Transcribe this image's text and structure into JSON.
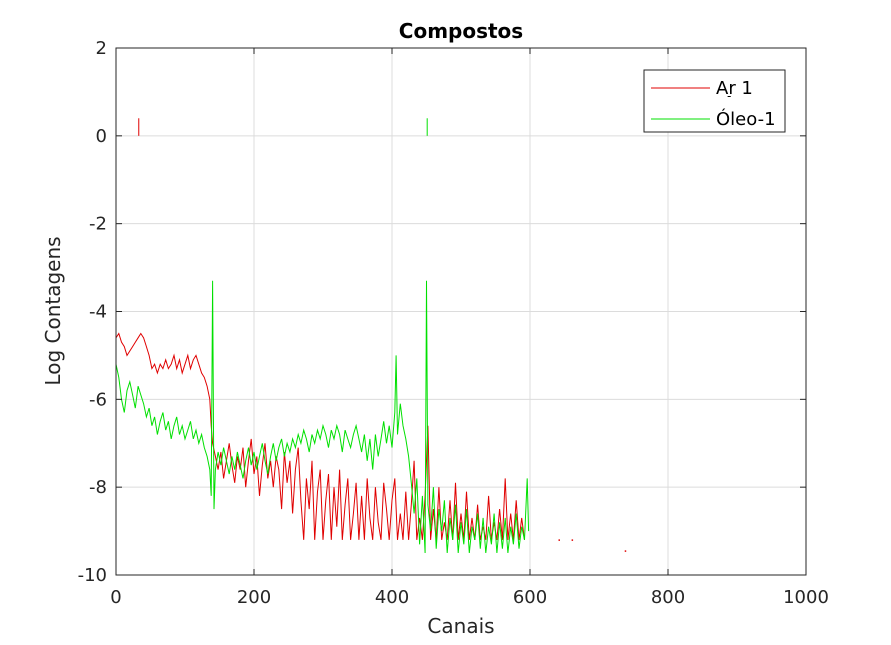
{
  "chart_data": {
    "type": "line",
    "title": "Compostos",
    "xlabel": "Canais",
    "ylabel": "Log Contagens",
    "xlim": [
      0,
      1000
    ],
    "ylim": [
      -10,
      2
    ],
    "xticks": [
      0,
      200,
      400,
      600,
      800,
      1000
    ],
    "xtick_labels": [
      "0",
      "200",
      "400",
      "600",
      "800",
      "1000"
    ],
    "yticks": [
      2,
      0,
      -2,
      -4,
      -6,
      -8,
      -10
    ],
    "ytick_labels": [
      "2",
      "0",
      "-2",
      "-4",
      "-6",
      "-8",
      "-10"
    ],
    "grid": true,
    "legend_position": "top-right",
    "series": [
      {
        "name": "Ar_1",
        "legend_label": "Ar 1",
        "legend_sub": "-",
        "color": "#e00000",
        "points": [
          [
            0,
            -4.6
          ],
          [
            4,
            -4.5
          ],
          [
            8,
            -4.7
          ],
          [
            12,
            -4.8
          ],
          [
            16,
            -5.0
          ],
          [
            20,
            -4.9
          ],
          [
            24,
            -4.8
          ],
          [
            28,
            -4.7
          ],
          [
            32,
            -4.6
          ],
          [
            36,
            -4.5
          ],
          [
            40,
            -4.6
          ],
          [
            44,
            -4.8
          ],
          [
            48,
            -5.0
          ],
          [
            52,
            -5.3
          ],
          [
            56,
            -5.2
          ],
          [
            60,
            -5.4
          ],
          [
            64,
            -5.2
          ],
          [
            68,
            -5.3
          ],
          [
            72,
            -5.1
          ],
          [
            76,
            -5.3
          ],
          [
            80,
            -5.2
          ],
          [
            84,
            -5.0
          ],
          [
            88,
            -5.3
          ],
          [
            92,
            -5.1
          ],
          [
            96,
            -5.4
          ],
          [
            100,
            -5.2
          ],
          [
            104,
            -5.0
          ],
          [
            108,
            -5.3
          ],
          [
            112,
            -5.1
          ],
          [
            116,
            -5.0
          ],
          [
            120,
            -5.2
          ],
          [
            124,
            -5.4
          ],
          [
            128,
            -5.5
          ],
          [
            132,
            -5.7
          ],
          [
            136,
            -6.0
          ],
          [
            138,
            -6.6
          ],
          [
            140,
            -7.0
          ],
          [
            144,
            -7.3
          ],
          [
            148,
            -7.6
          ],
          [
            152,
            -7.2
          ],
          [
            156,
            -7.8
          ],
          [
            160,
            -7.4
          ],
          [
            164,
            -7.0
          ],
          [
            168,
            -7.5
          ],
          [
            172,
            -7.9
          ],
          [
            176,
            -7.3
          ],
          [
            180,
            -7.6
          ],
          [
            184,
            -7.1
          ],
          [
            188,
            -8.0
          ],
          [
            192,
            -7.4
          ],
          [
            196,
            -6.9
          ],
          [
            200,
            -7.7
          ],
          [
            204,
            -7.3
          ],
          [
            208,
            -8.2
          ],
          [
            212,
            -7.5
          ],
          [
            216,
            -7.0
          ],
          [
            220,
            -7.8
          ],
          [
            224,
            -7.4
          ],
          [
            228,
            -8.0
          ],
          [
            232,
            -7.3
          ],
          [
            236,
            -7.6
          ],
          [
            240,
            -8.5
          ],
          [
            244,
            -7.2
          ],
          [
            248,
            -7.9
          ],
          [
            252,
            -7.4
          ],
          [
            256,
            -8.6
          ],
          [
            260,
            -7.6
          ],
          [
            264,
            -7.1
          ],
          [
            268,
            -8.3
          ],
          [
            272,
            -9.2
          ],
          [
            276,
            -7.8
          ],
          [
            280,
            -8.5
          ],
          [
            284,
            -7.4
          ],
          [
            288,
            -9.2
          ],
          [
            292,
            -8.1
          ],
          [
            296,
            -7.6
          ],
          [
            300,
            -9.2
          ],
          [
            304,
            -8.3
          ],
          [
            308,
            -7.7
          ],
          [
            312,
            -9.2
          ],
          [
            316,
            -8.0
          ],
          [
            320,
            -8.9
          ],
          [
            324,
            -7.6
          ],
          [
            328,
            -9.2
          ],
          [
            332,
            -8.4
          ],
          [
            336,
            -7.8
          ],
          [
            340,
            -9.2
          ],
          [
            344,
            -8.6
          ],
          [
            348,
            -7.9
          ],
          [
            352,
            -9.2
          ],
          [
            356,
            -8.2
          ],
          [
            360,
            -9.2
          ],
          [
            364,
            -7.8
          ],
          [
            368,
            -8.7
          ],
          [
            372,
            -9.2
          ],
          [
            376,
            -8.0
          ],
          [
            380,
            -8.8
          ],
          [
            384,
            -9.2
          ],
          [
            388,
            -7.9
          ],
          [
            392,
            -8.5
          ],
          [
            396,
            -9.2
          ],
          [
            400,
            -8.3
          ],
          [
            404,
            -7.8
          ],
          [
            408,
            -9.2
          ],
          [
            412,
            -8.6
          ],
          [
            416,
            -9.2
          ],
          [
            420,
            -8.1
          ],
          [
            424,
            -9.2
          ],
          [
            428,
            -8.4
          ],
          [
            432,
            -7.4
          ],
          [
            436,
            -9.2
          ],
          [
            440,
            -8.7
          ],
          [
            444,
            -9.2
          ],
          [
            448,
            -8.2
          ],
          [
            452,
            -6.6
          ],
          [
            456,
            -9.2
          ],
          [
            460,
            -8.5
          ],
          [
            464,
            -9.2
          ],
          [
            468,
            -8.0
          ],
          [
            472,
            -9.2
          ],
          [
            476,
            -8.8
          ],
          [
            480,
            -9.2
          ],
          [
            484,
            -8.3
          ],
          [
            488,
            -9.2
          ],
          [
            492,
            -7.9
          ],
          [
            496,
            -9.2
          ],
          [
            500,
            -8.6
          ],
          [
            504,
            -9.2
          ],
          [
            508,
            -8.1
          ],
          [
            512,
            -9.2
          ],
          [
            516,
            -8.7
          ],
          [
            520,
            -9.2
          ],
          [
            524,
            -8.4
          ],
          [
            528,
            -9.2
          ],
          [
            532,
            -8.9
          ],
          [
            536,
            -9.2
          ],
          [
            540,
            -8.2
          ],
          [
            544,
            -9.2
          ],
          [
            548,
            -8.8
          ],
          [
            552,
            -9.2
          ],
          [
            556,
            -8.5
          ],
          [
            560,
            -9.2
          ],
          [
            564,
            -7.8
          ],
          [
            568,
            -9.2
          ],
          [
            572,
            -8.6
          ],
          [
            576,
            -9.2
          ],
          [
            580,
            -8.3
          ],
          [
            584,
            -9.2
          ],
          [
            588,
            -8.7
          ],
          [
            592,
            -9.2
          ]
        ]
      },
      {
        "name": "Óleo-1",
        "color": "#00e000",
        "points": [
          [
            0,
            -5.2
          ],
          [
            4,
            -5.5
          ],
          [
            8,
            -6.0
          ],
          [
            12,
            -6.3
          ],
          [
            16,
            -5.8
          ],
          [
            20,
            -5.6
          ],
          [
            24,
            -5.9
          ],
          [
            28,
            -6.2
          ],
          [
            32,
            -5.7
          ],
          [
            36,
            -5.9
          ],
          [
            40,
            -6.1
          ],
          [
            44,
            -6.4
          ],
          [
            48,
            -6.2
          ],
          [
            52,
            -6.6
          ],
          [
            56,
            -6.4
          ],
          [
            60,
            -6.8
          ],
          [
            64,
            -6.5
          ],
          [
            68,
            -6.3
          ],
          [
            72,
            -6.7
          ],
          [
            76,
            -6.5
          ],
          [
            80,
            -6.9
          ],
          [
            84,
            -6.6
          ],
          [
            88,
            -6.4
          ],
          [
            92,
            -6.8
          ],
          [
            96,
            -6.6
          ],
          [
            100,
            -6.9
          ],
          [
            104,
            -6.7
          ],
          [
            108,
            -6.5
          ],
          [
            112,
            -6.9
          ],
          [
            116,
            -6.7
          ],
          [
            120,
            -7.0
          ],
          [
            124,
            -6.8
          ],
          [
            128,
            -7.1
          ],
          [
            132,
            -7.3
          ],
          [
            136,
            -7.6
          ],
          [
            138,
            -8.2
          ],
          [
            140,
            -3.3
          ],
          [
            142,
            -8.5
          ],
          [
            144,
            -7.6
          ],
          [
            148,
            -7.2
          ],
          [
            152,
            -7.5
          ],
          [
            156,
            -7.1
          ],
          [
            160,
            -7.4
          ],
          [
            164,
            -7.7
          ],
          [
            168,
            -7.3
          ],
          [
            172,
            -7.6
          ],
          [
            176,
            -7.2
          ],
          [
            180,
            -7.5
          ],
          [
            184,
            -7.8
          ],
          [
            188,
            -7.4
          ],
          [
            192,
            -7.1
          ],
          [
            196,
            -7.5
          ],
          [
            200,
            -7.2
          ],
          [
            204,
            -7.6
          ],
          [
            208,
            -7.3
          ],
          [
            212,
            -7.0
          ],
          [
            216,
            -7.4
          ],
          [
            220,
            -7.7
          ],
          [
            224,
            -7.3
          ],
          [
            228,
            -7.0
          ],
          [
            232,
            -7.4
          ],
          [
            236,
            -7.1
          ],
          [
            240,
            -6.9
          ],
          [
            244,
            -7.3
          ],
          [
            248,
            -7.0
          ],
          [
            252,
            -7.2
          ],
          [
            256,
            -6.9
          ],
          [
            260,
            -7.1
          ],
          [
            264,
            -6.8
          ],
          [
            268,
            -7.0
          ],
          [
            272,
            -6.7
          ],
          [
            276,
            -6.9
          ],
          [
            280,
            -7.2
          ],
          [
            284,
            -6.8
          ],
          [
            288,
            -7.0
          ],
          [
            292,
            -6.7
          ],
          [
            296,
            -6.9
          ],
          [
            300,
            -6.6
          ],
          [
            304,
            -6.8
          ],
          [
            308,
            -7.1
          ],
          [
            312,
            -6.7
          ],
          [
            316,
            -6.9
          ],
          [
            320,
            -6.6
          ],
          [
            324,
            -6.8
          ],
          [
            328,
            -7.2
          ],
          [
            332,
            -6.7
          ],
          [
            336,
            -6.9
          ],
          [
            340,
            -7.1
          ],
          [
            344,
            -6.8
          ],
          [
            348,
            -6.6
          ],
          [
            352,
            -6.9
          ],
          [
            356,
            -7.2
          ],
          [
            360,
            -6.8
          ],
          [
            364,
            -7.4
          ],
          [
            368,
            -6.9
          ],
          [
            372,
            -7.6
          ],
          [
            376,
            -6.8
          ],
          [
            380,
            -7.3
          ],
          [
            384,
            -6.9
          ],
          [
            388,
            -6.5
          ],
          [
            392,
            -7.0
          ],
          [
            396,
            -6.6
          ],
          [
            400,
            -7.1
          ],
          [
            404,
            -6.3
          ],
          [
            406,
            -5.0
          ],
          [
            408,
            -6.8
          ],
          [
            412,
            -6.1
          ],
          [
            416,
            -6.6
          ],
          [
            420,
            -6.9
          ],
          [
            424,
            -7.3
          ],
          [
            428,
            -7.9
          ],
          [
            432,
            -8.6
          ],
          [
            436,
            -7.8
          ],
          [
            440,
            -9.3
          ],
          [
            444,
            -8.2
          ],
          [
            448,
            -9.5
          ],
          [
            450,
            -3.3
          ],
          [
            452,
            -8.4
          ],
          [
            456,
            -9.0
          ],
          [
            460,
            -8.0
          ],
          [
            464,
            -9.4
          ],
          [
            468,
            -8.5
          ],
          [
            472,
            -9.0
          ],
          [
            476,
            -8.3
          ],
          [
            480,
            -9.5
          ],
          [
            484,
            -8.7
          ],
          [
            488,
            -9.2
          ],
          [
            492,
            -8.4
          ],
          [
            496,
            -9.5
          ],
          [
            500,
            -8.8
          ],
          [
            504,
            -9.3
          ],
          [
            508,
            -8.5
          ],
          [
            512,
            -9.5
          ],
          [
            516,
            -8.9
          ],
          [
            520,
            -9.2
          ],
          [
            524,
            -8.6
          ],
          [
            528,
            -9.4
          ],
          [
            532,
            -8.7
          ],
          [
            536,
            -9.5
          ],
          [
            540,
            -8.9
          ],
          [
            544,
            -9.3
          ],
          [
            548,
            -8.6
          ],
          [
            552,
            -9.5
          ],
          [
            556,
            -8.8
          ],
          [
            560,
            -9.4
          ],
          [
            564,
            -8.7
          ],
          [
            568,
            -9.5
          ],
          [
            572,
            -8.9
          ],
          [
            576,
            -9.3
          ],
          [
            580,
            -8.6
          ],
          [
            584,
            -9.4
          ],
          [
            588,
            -8.9
          ],
          [
            592,
            -9.2
          ],
          [
            596,
            -7.8
          ],
          [
            598,
            -9.0
          ]
        ]
      }
    ],
    "spikes": [
      {
        "series": "Ar_1",
        "x": 33,
        "y0": 0,
        "y1": 0.4
      },
      {
        "series": "Óleo-1",
        "x": 451,
        "y0": 0,
        "y1": 0.4
      }
    ],
    "dots": [
      {
        "series": "Ar_1",
        "x": 642,
        "y": -9.2
      },
      {
        "series": "Ar_1",
        "x": 661,
        "y": -9.2
      },
      {
        "series": "Ar_1",
        "x": 738,
        "y": -9.45
      }
    ]
  }
}
